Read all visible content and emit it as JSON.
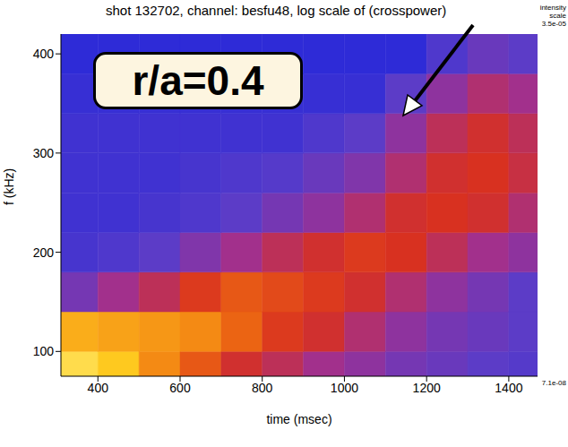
{
  "chart_data": {
    "type": "heatmap",
    "title": "shot 132702, channel: besfu48, log scale of (crosspower)",
    "x_label": "time (msec)",
    "y_label": "f (kHz)",
    "xlim": [
      310,
      1470
    ],
    "ylim": [
      75,
      420
    ],
    "xticks": [
      400,
      600,
      800,
      1000,
      1200,
      1400
    ],
    "yticks": [
      100,
      200,
      300,
      400
    ],
    "x_bins": [
      310,
      400,
      500,
      600,
      700,
      800,
      900,
      1000,
      1100,
      1200,
      1300,
      1400,
      1470
    ],
    "y_bins": [
      75,
      100,
      140,
      180,
      220,
      260,
      300,
      340,
      380,
      420
    ],
    "values": [
      [
        2.2e-05,
        1.8e-05,
        1.2e-05,
        8e-06,
        5e-06,
        4e-06,
        3e-06,
        2.5e-06,
        2e-06,
        1.8e-06,
        1.6e-06,
        1.5e-06
      ],
      [
        1.5e-05,
        1.4e-05,
        1.3e-05,
        1.2e-05,
        9e-06,
        6e-06,
        5e-06,
        3.5e-06,
        2.5e-06,
        2e-06,
        1.8e-06,
        1.6e-06
      ],
      [
        2e-06,
        3e-06,
        4e-06,
        6e-06,
        8e-06,
        7e-06,
        6e-06,
        5e-06,
        3.5e-06,
        2.5e-06,
        2e-06,
        1.6e-06
      ],
      [
        1.3e-06,
        1.4e-06,
        1.6e-06,
        2.2e-06,
        3e-06,
        4e-06,
        5e-06,
        6e-06,
        5.5e-06,
        4e-06,
        3e-06,
        2.5e-06
      ],
      [
        1.2e-06,
        1.2e-06,
        1.3e-06,
        1.4e-06,
        1.6e-06,
        2e-06,
        2.5e-06,
        3.5e-06,
        5e-06,
        5.5e-06,
        5e-06,
        3.5e-06
      ],
      [
        1.2e-06,
        1.2e-06,
        1.2e-06,
        1.3e-06,
        1.4e-06,
        1.5e-06,
        1.8e-06,
        2.2e-06,
        3.5e-06,
        5e-06,
        5.5e-06,
        4.5e-06
      ],
      [
        1.2e-06,
        1.2e-06,
        1.2e-06,
        1.2e-06,
        1.2e-06,
        1.2e-06,
        1.4e-06,
        1.6e-06,
        2.5e-06,
        4e-06,
        5e-06,
        4e-06
      ],
      [
        1.1e-06,
        1.1e-06,
        1.1e-06,
        1.1e-06,
        1.1e-06,
        1.1e-06,
        1.1e-06,
        1.1e-06,
        1.6e-06,
        2.5e-06,
        3.5e-06,
        3e-06
      ],
      [
        1e-06,
        1e-06,
        1e-06,
        1e-06,
        1e-06,
        1e-06,
        1e-06,
        1e-06,
        1e-06,
        1.4e-06,
        1.8e-06,
        1.6e-06
      ]
    ],
    "colorbar": {
      "label": "intensity scale",
      "range": [
        7.1e-08,
        3.5e-05
      ],
      "ticks": [
        {
          "value": 3.5e-05,
          "label": "3.5e-05"
        },
        {
          "value": 7.1e-08,
          "label": "7.1e-08"
        }
      ],
      "log": true
    },
    "annotations": [
      "r/a=0.4"
    ]
  }
}
